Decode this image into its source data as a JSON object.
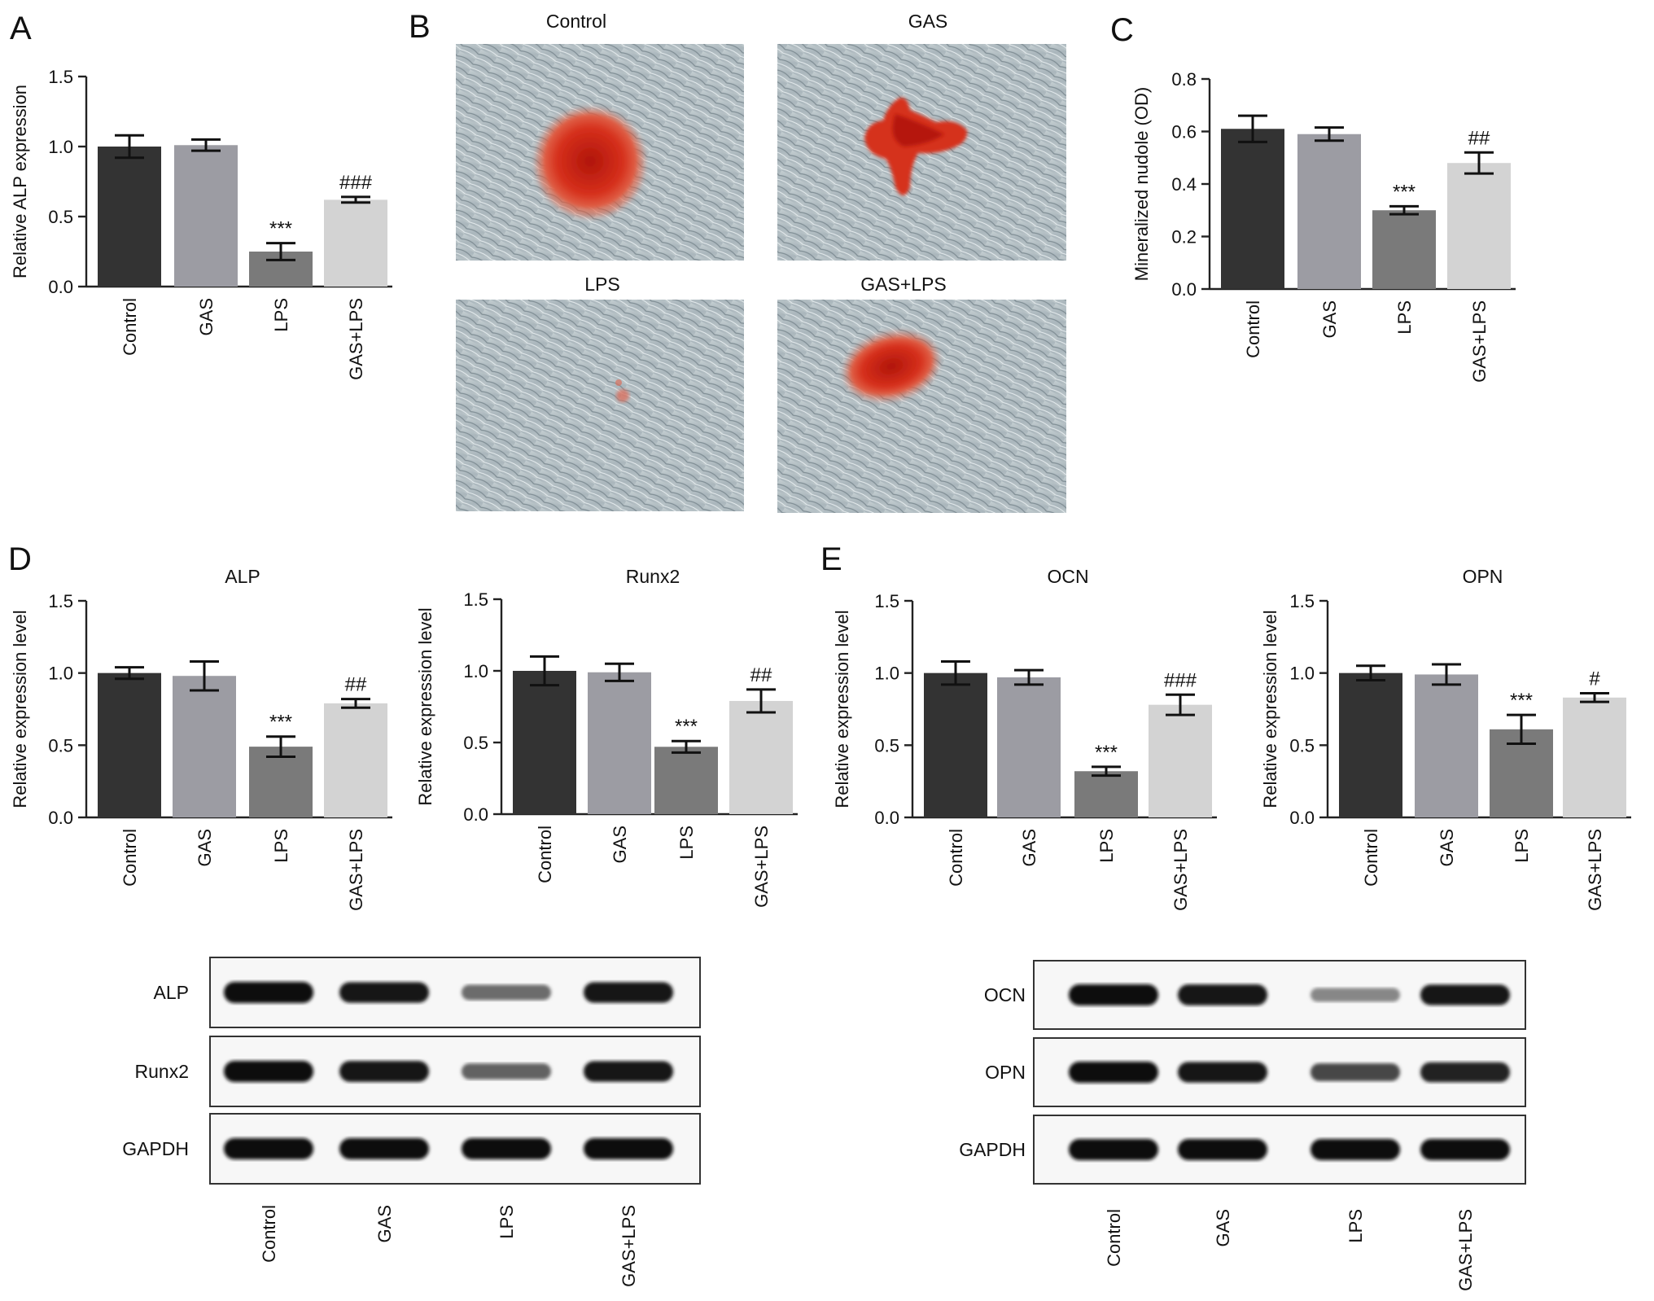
{
  "panels": {
    "A": {
      "label": "A"
    },
    "B": {
      "label": "B"
    },
    "C": {
      "label": "C"
    },
    "D": {
      "label": "D"
    },
    "E": {
      "label": "E"
    }
  },
  "micrographs": [
    {
      "title": "Control",
      "stain": "large round red nodule"
    },
    {
      "title": "GAS",
      "stain": "branched red nodule"
    },
    {
      "title": "LPS",
      "stain": "faint speck"
    },
    {
      "title": "GAS+LPS",
      "stain": "oval red nodule"
    }
  ],
  "colors": {
    "bars": [
      "#333333",
      "#9c9ca3",
      "#7a7a7a",
      "#d3d3d3"
    ],
    "stain": "#d21e10",
    "cells": "#b3c0c6"
  },
  "chart_data": [
    {
      "id": "A",
      "type": "bar",
      "title": "",
      "categories": [
        "Control",
        "GAS",
        "LPS",
        "GAS+LPS"
      ],
      "values": [
        1.0,
        1.01,
        0.25,
        0.62
      ],
      "errors": [
        0.08,
        0.04,
        0.06,
        0.02
      ],
      "significance": [
        "",
        "",
        "***",
        "###"
      ],
      "ylabel": "Relative ALP expression",
      "ylim": [
        0,
        1.5
      ],
      "yticks": [
        "0.0",
        "0.5",
        "1.0",
        "1.5"
      ]
    },
    {
      "id": "C",
      "type": "bar",
      "title": "",
      "categories": [
        "Control",
        "GAS",
        "LPS",
        "GAS+LPS"
      ],
      "values": [
        0.61,
        0.59,
        0.3,
        0.48
      ],
      "errors": [
        0.05,
        0.025,
        0.015,
        0.04
      ],
      "significance": [
        "",
        "",
        "***",
        "##"
      ],
      "ylabel": "Mineralized nudole (OD)",
      "ylim": [
        0,
        0.8
      ],
      "yticks": [
        "0.0",
        "0.2",
        "0.4",
        "0.6",
        "0.8"
      ]
    },
    {
      "id": "D-ALP",
      "type": "bar",
      "title": "ALP",
      "categories": [
        "Control",
        "GAS",
        "LPS",
        "GAS+LPS"
      ],
      "values": [
        1.0,
        0.98,
        0.49,
        0.79
      ],
      "errors": [
        0.04,
        0.1,
        0.07,
        0.03
      ],
      "significance": [
        "",
        "",
        "***",
        "##"
      ],
      "ylabel": "Relative expression level",
      "ylim": [
        0,
        1.5
      ],
      "yticks": [
        "0.0",
        "0.5",
        "1.0",
        "1.5"
      ]
    },
    {
      "id": "D-Runx2",
      "type": "bar",
      "title": "Runx2",
      "categories": [
        "Control",
        "GAS",
        "LPS",
        "GAS+LPS"
      ],
      "values": [
        1.0,
        0.99,
        0.47,
        0.79
      ],
      "errors": [
        0.1,
        0.06,
        0.04,
        0.08
      ],
      "significance": [
        "",
        "",
        "***",
        "##"
      ],
      "ylabel": "Relative expression level",
      "ylim": [
        0,
        1.5
      ],
      "yticks": [
        "0.0",
        "0.5",
        "1.0",
        "1.5"
      ]
    },
    {
      "id": "E-OCN",
      "type": "bar",
      "title": "OCN",
      "categories": [
        "Control",
        "GAS",
        "LPS",
        "GAS+LPS"
      ],
      "values": [
        1.0,
        0.97,
        0.32,
        0.78
      ],
      "errors": [
        0.08,
        0.05,
        0.03,
        0.07
      ],
      "significance": [
        "",
        "",
        "***",
        "###"
      ],
      "ylabel": "Relative expression level",
      "ylim": [
        0,
        1.5
      ],
      "yticks": [
        "0.0",
        "0.5",
        "1.0",
        "1.5"
      ]
    },
    {
      "id": "E-OPN",
      "type": "bar",
      "title": "OPN",
      "categories": [
        "Control",
        "GAS",
        "LPS",
        "GAS+LPS"
      ],
      "values": [
        1.0,
        0.99,
        0.61,
        0.83
      ],
      "errors": [
        0.05,
        0.07,
        0.1,
        0.03
      ],
      "significance": [
        "",
        "",
        "***",
        "#"
      ],
      "ylabel": "Relative expression level",
      "ylim": [
        0,
        1.5
      ],
      "yticks": [
        "0.0",
        "0.5",
        "1.0",
        "1.5"
      ]
    }
  ],
  "blots": [
    {
      "id": "D-blot",
      "lanes": [
        "Control",
        "GAS",
        "LPS",
        "GAS+LPS"
      ],
      "rows": [
        {
          "label": "ALP",
          "intensities": [
            1.0,
            0.95,
            0.5,
            0.95
          ]
        },
        {
          "label": "Runx2",
          "intensities": [
            1.0,
            0.98,
            0.55,
            0.95
          ]
        },
        {
          "label": "GAPDH",
          "intensities": [
            1.0,
            1.0,
            1.0,
            1.0
          ]
        }
      ]
    },
    {
      "id": "E-blot",
      "lanes": [
        "Control",
        "GAS",
        "LPS",
        "GAS+LPS"
      ],
      "rows": [
        {
          "label": "OCN",
          "intensities": [
            1.0,
            0.98,
            0.35,
            0.95
          ]
        },
        {
          "label": "OPN",
          "intensities": [
            1.0,
            0.95,
            0.7,
            0.9
          ]
        },
        {
          "label": "GAPDH",
          "intensities": [
            1.0,
            1.0,
            1.0,
            1.0
          ]
        }
      ]
    }
  ]
}
